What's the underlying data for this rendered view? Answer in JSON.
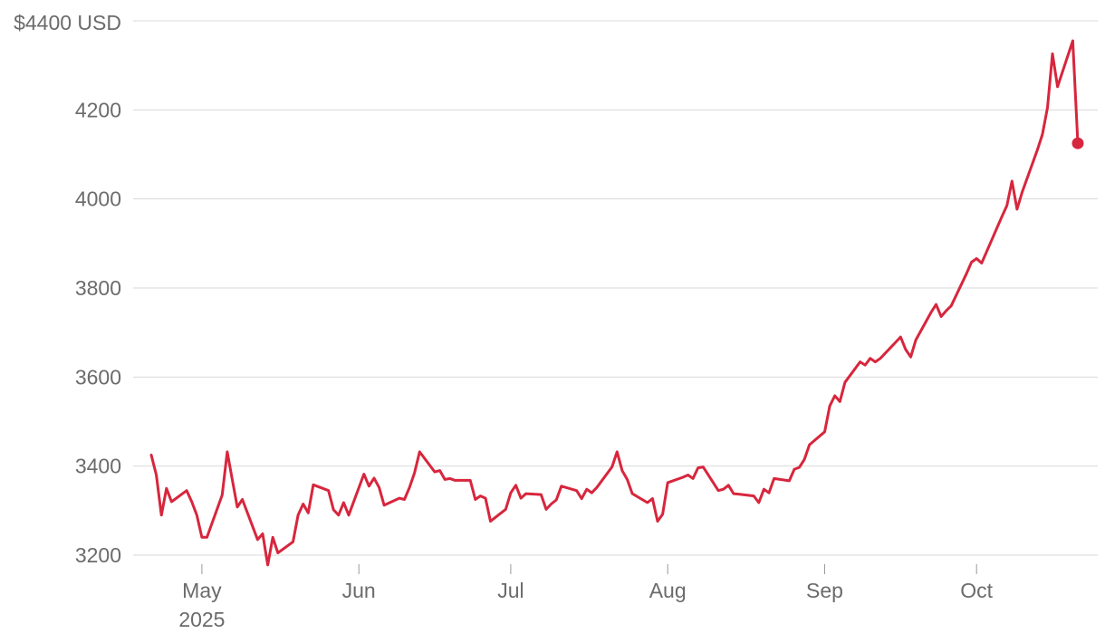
{
  "chart_data": {
    "type": "line",
    "title": "",
    "xlabel": "",
    "ylabel": "",
    "unit_label": "$4400 USD",
    "y_ticks": [
      3200,
      3400,
      3600,
      3800,
      4000,
      4200
    ],
    "ylim": [
      3200,
      4400
    ],
    "x_ticks": [
      {
        "date": "2025-05-01",
        "label": "May",
        "sublabel": "2025"
      },
      {
        "date": "2025-06-01",
        "label": "Jun",
        "sublabel": ""
      },
      {
        "date": "2025-07-01",
        "label": "Jul",
        "sublabel": ""
      },
      {
        "date": "2025-08-01",
        "label": "Aug",
        "sublabel": ""
      },
      {
        "date": "2025-09-01",
        "label": "Sep",
        "sublabel": ""
      },
      {
        "date": "2025-10-01",
        "label": "Oct",
        "sublabel": ""
      }
    ],
    "grid": true,
    "line_color": "#d7263d",
    "series": [
      {
        "name": "",
        "points": [
          [
            "2025-04-21",
            3425
          ],
          [
            "2025-04-22",
            3380
          ],
          [
            "2025-04-23",
            3290
          ],
          [
            "2025-04-24",
            3350
          ],
          [
            "2025-04-25",
            3320
          ],
          [
            "2025-04-28",
            3345
          ],
          [
            "2025-04-29",
            3320
          ],
          [
            "2025-04-30",
            3290
          ],
          [
            "2025-05-01",
            3240
          ],
          [
            "2025-05-02",
            3240
          ],
          [
            "2025-05-05",
            3335
          ],
          [
            "2025-05-06",
            3432
          ],
          [
            "2025-05-07",
            3370
          ],
          [
            "2025-05-08",
            3308
          ],
          [
            "2025-05-09",
            3325
          ],
          [
            "2025-05-12",
            3235
          ],
          [
            "2025-05-13",
            3248
          ],
          [
            "2025-05-14",
            3178
          ],
          [
            "2025-05-15",
            3240
          ],
          [
            "2025-05-16",
            3205
          ],
          [
            "2025-05-19",
            3230
          ],
          [
            "2025-05-20",
            3290
          ],
          [
            "2025-05-21",
            3315
          ],
          [
            "2025-05-22",
            3295
          ],
          [
            "2025-05-23",
            3358
          ],
          [
            "2025-05-26",
            3345
          ],
          [
            "2025-05-27",
            3302
          ],
          [
            "2025-05-28",
            3290
          ],
          [
            "2025-05-29",
            3318
          ],
          [
            "2025-05-30",
            3290
          ],
          [
            "2025-06-02",
            3382
          ],
          [
            "2025-06-03",
            3355
          ],
          [
            "2025-06-04",
            3373
          ],
          [
            "2025-06-05",
            3352
          ],
          [
            "2025-06-06",
            3312
          ],
          [
            "2025-06-09",
            3328
          ],
          [
            "2025-06-10",
            3325
          ],
          [
            "2025-06-11",
            3352
          ],
          [
            "2025-06-12",
            3385
          ],
          [
            "2025-06-13",
            3432
          ],
          [
            "2025-06-16",
            3387
          ],
          [
            "2025-06-17",
            3390
          ],
          [
            "2025-06-18",
            3370
          ],
          [
            "2025-06-19",
            3372
          ],
          [
            "2025-06-20",
            3368
          ],
          [
            "2025-06-23",
            3368
          ],
          [
            "2025-06-24",
            3325
          ],
          [
            "2025-06-25",
            3333
          ],
          [
            "2025-06-26",
            3328
          ],
          [
            "2025-06-27",
            3276
          ],
          [
            "2025-06-30",
            3303
          ],
          [
            "2025-07-01",
            3340
          ],
          [
            "2025-07-02",
            3357
          ],
          [
            "2025-07-03",
            3328
          ],
          [
            "2025-07-04",
            3338
          ],
          [
            "2025-07-07",
            3336
          ],
          [
            "2025-07-08",
            3303
          ],
          [
            "2025-07-09",
            3315
          ],
          [
            "2025-07-10",
            3324
          ],
          [
            "2025-07-11",
            3355
          ],
          [
            "2025-07-14",
            3345
          ],
          [
            "2025-07-15",
            3327
          ],
          [
            "2025-07-16",
            3348
          ],
          [
            "2025-07-17",
            3340
          ],
          [
            "2025-07-18",
            3352
          ],
          [
            "2025-07-21",
            3398
          ],
          [
            "2025-07-22",
            3432
          ],
          [
            "2025-07-23",
            3390
          ],
          [
            "2025-07-24",
            3370
          ],
          [
            "2025-07-25",
            3338
          ],
          [
            "2025-07-28",
            3318
          ],
          [
            "2025-07-29",
            3327
          ],
          [
            "2025-07-30",
            3276
          ],
          [
            "2025-07-31",
            3292
          ],
          [
            "2025-08-01",
            3363
          ],
          [
            "2025-08-04",
            3375
          ],
          [
            "2025-08-05",
            3380
          ],
          [
            "2025-08-06",
            3372
          ],
          [
            "2025-08-07",
            3396
          ],
          [
            "2025-08-08",
            3398
          ],
          [
            "2025-08-11",
            3345
          ],
          [
            "2025-08-12",
            3348
          ],
          [
            "2025-08-13",
            3357
          ],
          [
            "2025-08-14",
            3338
          ],
          [
            "2025-08-15",
            3337
          ],
          [
            "2025-08-18",
            3333
          ],
          [
            "2025-08-19",
            3318
          ],
          [
            "2025-08-20",
            3348
          ],
          [
            "2025-08-21",
            3340
          ],
          [
            "2025-08-22",
            3372
          ],
          [
            "2025-08-25",
            3367
          ],
          [
            "2025-08-26",
            3393
          ],
          [
            "2025-08-27",
            3397
          ],
          [
            "2025-08-28",
            3415
          ],
          [
            "2025-08-29",
            3448
          ],
          [
            "2025-09-01",
            3477
          ],
          [
            "2025-09-02",
            3535
          ],
          [
            "2025-09-03",
            3558
          ],
          [
            "2025-09-04",
            3545
          ],
          [
            "2025-09-05",
            3588
          ],
          [
            "2025-09-08",
            3634
          ],
          [
            "2025-09-09",
            3627
          ],
          [
            "2025-09-10",
            3642
          ],
          [
            "2025-09-11",
            3634
          ],
          [
            "2025-09-12",
            3642
          ],
          [
            "2025-09-15",
            3678
          ],
          [
            "2025-09-16",
            3690
          ],
          [
            "2025-09-17",
            3662
          ],
          [
            "2025-09-18",
            3645
          ],
          [
            "2025-09-19",
            3683
          ],
          [
            "2025-09-22",
            3745
          ],
          [
            "2025-09-23",
            3763
          ],
          [
            "2025-09-24",
            3736
          ],
          [
            "2025-09-25",
            3749
          ],
          [
            "2025-09-26",
            3760
          ],
          [
            "2025-09-29",
            3832
          ],
          [
            "2025-09-30",
            3858
          ],
          [
            "2025-10-01",
            3866
          ],
          [
            "2025-10-02",
            3856
          ],
          [
            "2025-10-03",
            3882
          ],
          [
            "2025-10-06",
            3960
          ],
          [
            "2025-10-07",
            3985
          ],
          [
            "2025-10-08",
            4040
          ],
          [
            "2025-10-09",
            3977
          ],
          [
            "2025-10-10",
            4015
          ],
          [
            "2025-10-13",
            4110
          ],
          [
            "2025-10-14",
            4145
          ],
          [
            "2025-10-15",
            4205
          ],
          [
            "2025-10-16",
            4326
          ],
          [
            "2025-10-17",
            4252
          ],
          [
            "2025-10-20",
            4355
          ],
          [
            "2025-10-21",
            4125
          ]
        ]
      }
    ]
  }
}
